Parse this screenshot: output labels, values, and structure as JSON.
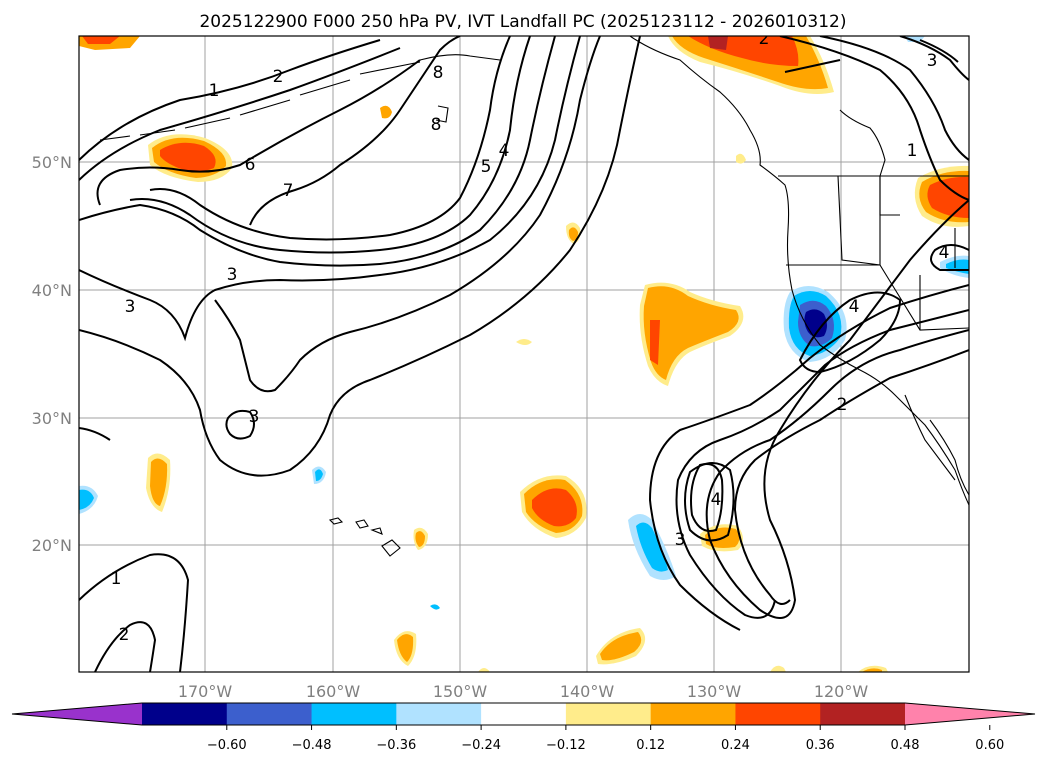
{
  "title": "2025122900 F000 250 hPa PV, IVT Landfall PC (2025123112 - 2026010312)",
  "lon_labels": [
    "170°W",
    "160°W",
    "150°W",
    "140°W",
    "130°W",
    "120°W"
  ],
  "lat_labels": [
    "50°N",
    "40°N",
    "30°N",
    "20°N"
  ],
  "contour_labels": [
    "1",
    "2",
    "8",
    "8",
    "6",
    "7",
    "5",
    "4",
    "3",
    "3",
    "3",
    "1",
    "2",
    "1",
    "3",
    "2",
    "4",
    "4",
    "3",
    "2",
    "4"
  ],
  "colorbar": {
    "colors": [
      "#9932cc",
      "#00008b",
      "#3c5fcd",
      "#00bfff",
      "#b0e2ff",
      "#ffffff",
      "#ffec8b",
      "#ffa500",
      "#ff4500",
      "#b22222",
      "#ff82ab"
    ],
    "ticks": [
      "−0.60",
      "−0.48",
      "−0.36",
      "−0.24",
      "−0.12",
      "0.12",
      "0.24",
      "0.36",
      "0.48",
      "0.60"
    ]
  }
}
